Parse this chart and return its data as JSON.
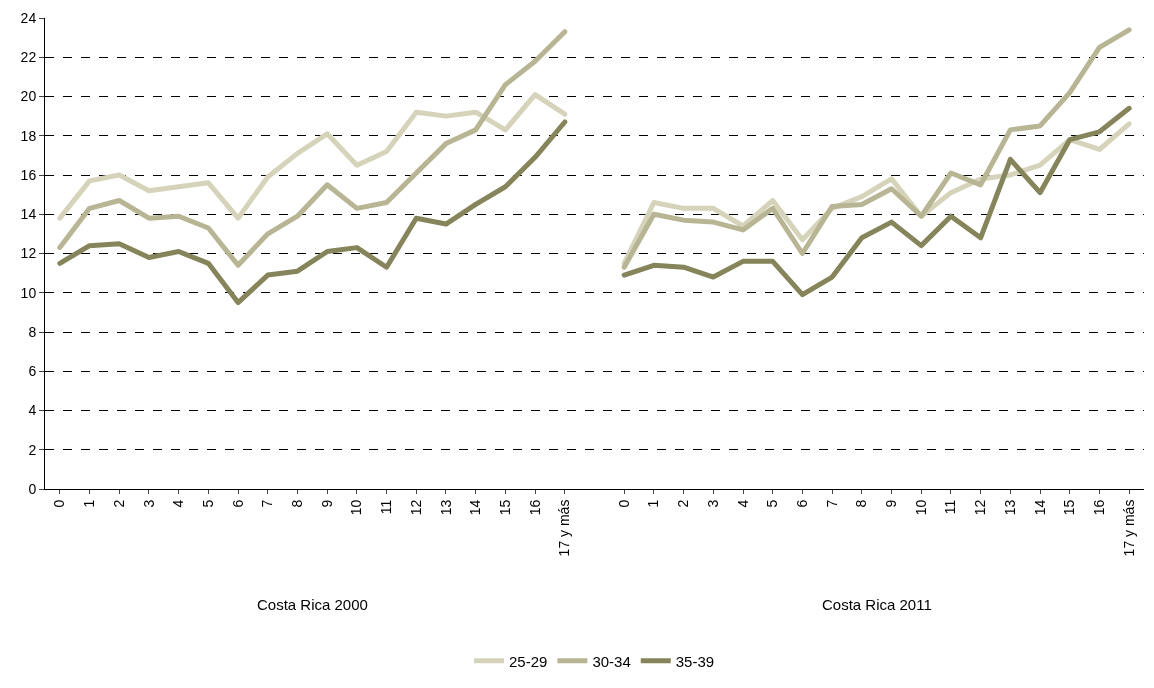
{
  "chart_data": {
    "type": "line",
    "categories": [
      "0",
      "1",
      "2",
      "3",
      "4",
      "5",
      "6",
      "7",
      "8",
      "9",
      "10",
      "11",
      "12",
      "13",
      "14",
      "15",
      "16",
      "17 y más",
      null,
      "0",
      "1",
      "2",
      "3",
      "4",
      "5",
      "6",
      "7",
      "8",
      "9",
      "10",
      "11",
      "12",
      "13",
      "14",
      "15",
      "16",
      "17 y más"
    ],
    "series": [
      {
        "name": "25-29",
        "color": "#d6d3bb",
        "values": [
          13.8,
          15.7,
          16.0,
          15.2,
          15.4,
          15.6,
          13.8,
          15.9,
          17.1,
          18.1,
          16.5,
          17.2,
          19.2,
          19.0,
          19.2,
          18.3,
          20.1,
          19.1,
          null,
          11.5,
          14.6,
          14.3,
          14.3,
          13.4,
          14.7,
          12.7,
          14.3,
          14.9,
          15.8,
          13.9,
          15.1,
          15.8,
          16.0,
          16.5,
          17.8,
          17.3,
          18.6
        ]
      },
      {
        "name": "30-34",
        "color": "#b8b594",
        "values": [
          12.3,
          14.3,
          14.7,
          13.8,
          13.9,
          13.3,
          11.4,
          13.0,
          13.9,
          15.5,
          14.3,
          14.6,
          16.1,
          17.6,
          18.3,
          20.6,
          21.8,
          23.3,
          null,
          11.3,
          14.0,
          13.7,
          13.6,
          13.2,
          14.3,
          12.0,
          14.4,
          14.5,
          15.3,
          13.9,
          16.1,
          15.5,
          18.3,
          18.5,
          20.2,
          22.5,
          23.4
        ]
      },
      {
        "name": "35-39",
        "color": "#85845a",
        "values": [
          11.5,
          12.4,
          12.5,
          11.8,
          12.1,
          11.5,
          9.5,
          10.9,
          11.1,
          12.1,
          12.3,
          11.3,
          13.8,
          13.5,
          14.5,
          15.4,
          16.9,
          18.7,
          null,
          10.9,
          11.4,
          11.3,
          10.8,
          11.6,
          11.6,
          9.9,
          10.8,
          12.8,
          13.6,
          12.4,
          13.9,
          12.8,
          16.8,
          15.1,
          17.8,
          18.2,
          19.4
        ]
      }
    ],
    "annotations": [
      "Costa Rica 2000",
      "Costa Rica 2011"
    ],
    "ylim": [
      0,
      24
    ],
    "yticks": [
      0,
      2,
      4,
      6,
      8,
      10,
      12,
      14,
      16,
      18,
      20,
      22,
      24
    ],
    "grid": "y",
    "legend": "bottom",
    "line_style": "solid",
    "marker": "none"
  }
}
